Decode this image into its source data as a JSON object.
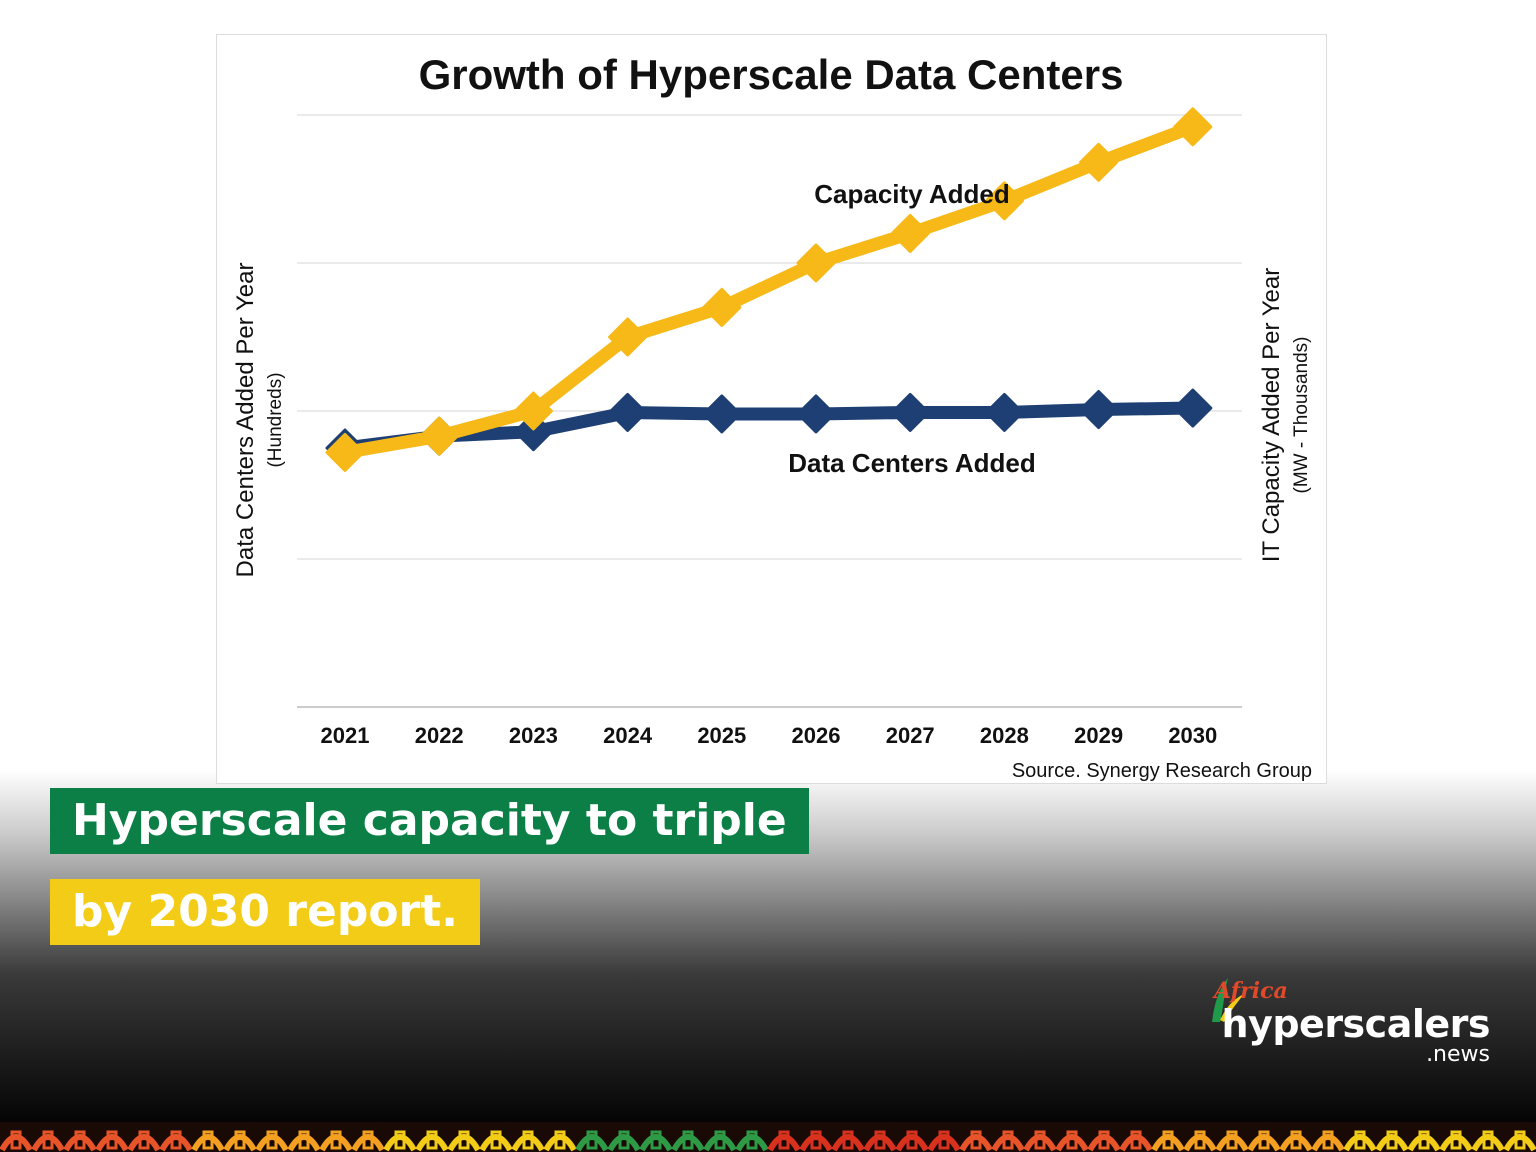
{
  "chart_data": {
    "type": "line",
    "title": "Growth of Hyperscale Data Centers",
    "x": [
      "2021",
      "2022",
      "2023",
      "2024",
      "2025",
      "2026",
      "2027",
      "2028",
      "2029",
      "2030"
    ],
    "series": [
      {
        "name": "Capacity Added",
        "values": [
          0.72,
          0.83,
          1.0,
          1.5,
          1.7,
          2.0,
          2.2,
          2.42,
          2.68,
          2.92
        ],
        "color": "#f7b918"
      },
      {
        "name": "Data Centers Added",
        "values": [
          0.75,
          0.83,
          0.86,
          0.99,
          0.98,
          0.98,
          0.99,
          0.99,
          1.01,
          1.02
        ],
        "color": "#1e3f73"
      }
    ],
    "ylim": [
      -1,
      3
    ],
    "ylabel_left": "Data Centers Added Per Year",
    "ylabel_left_sub": "(Hundreds)",
    "ylabel_right": "IT Capacity Added Per Year",
    "ylabel_right_sub": "(MW - Thousands)",
    "source": "Source. Synergy Research Group",
    "grid": true,
    "legend": "inline labels"
  },
  "headline": {
    "line1": "Hyperscale capacity to triple",
    "line2": "by 2030 report."
  },
  "logo": {
    "africa": "Africa",
    "main": "hyperscalers",
    "sub": ".news"
  },
  "colors": {
    "banner_green": "#0b7f45",
    "banner_yellow": "#f3cc17",
    "capacity_line": "#f7b918",
    "datacenters_line": "#1e3f73"
  }
}
